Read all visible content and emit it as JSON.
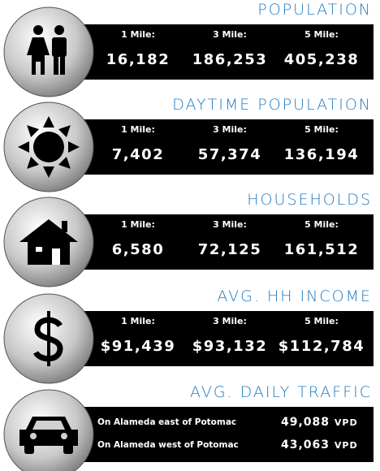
{
  "sections": [
    {
      "title": "POPULATION",
      "columns": [
        {
          "label": "1 Mile:",
          "value": "16,182"
        },
        {
          "label": "3 Mile:",
          "value": "186,253"
        },
        {
          "label": "5 Mile:",
          "value": "405,238"
        }
      ]
    },
    {
      "title": "DAYTIME POPULATION",
      "columns": [
        {
          "label": "1 Mile:",
          "value": "7,402"
        },
        {
          "label": "3 Mile:",
          "value": "57,374"
        },
        {
          "label": "5 Mile:",
          "value": "136,194"
        }
      ]
    },
    {
      "title": "HOUSEHOLDS",
      "columns": [
        {
          "label": "1 Mile:",
          "value": "6,580"
        },
        {
          "label": "3 Mile:",
          "value": "72,125"
        },
        {
          "label": "5 Mile:",
          "value": "161,512"
        }
      ]
    },
    {
      "title": "AVG. HH INCOME",
      "columns": [
        {
          "label": "1 Mile:",
          "value": "$91,439"
        },
        {
          "label": "3 Mile:",
          "value": "$93,132"
        },
        {
          "label": "5 Mile:",
          "value": "$112,784"
        }
      ]
    },
    {
      "title": "AVG. DAILY TRAFFIC",
      "rows": [
        {
          "label": "On Alameda east of Potomac",
          "value": "49,088",
          "unit": "VPD"
        },
        {
          "label": "On Alameda west of Potomac",
          "value": "43,063",
          "unit": "VPD"
        }
      ]
    }
  ]
}
